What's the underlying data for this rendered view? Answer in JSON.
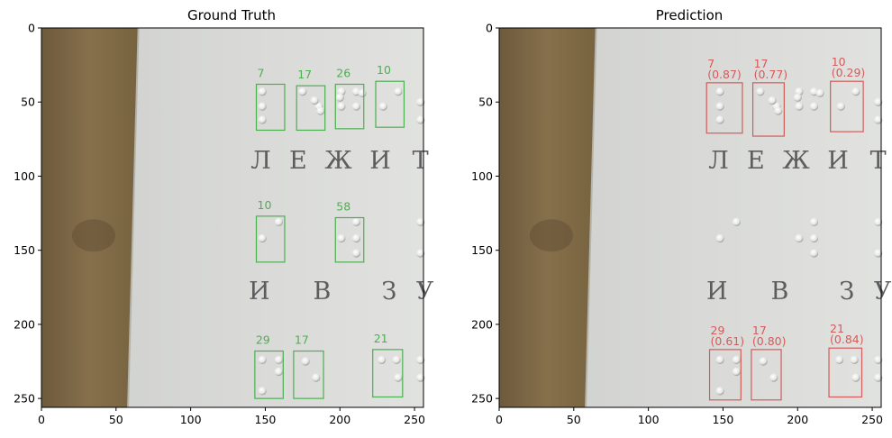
{
  "chart_data": [
    {
      "type": "image-detection",
      "title": "Ground Truth",
      "xlim": [
        0,
        256
      ],
      "ylim": [
        256,
        0
      ],
      "xticks": [
        0,
        50,
        100,
        150,
        200,
        250
      ],
      "yticks": [
        0,
        50,
        100,
        150,
        200,
        250
      ],
      "box_color": "#4caf50",
      "boxes": [
        {
          "label": "7",
          "x0": 144,
          "y0": 38,
          "x1": 163,
          "y1": 69
        },
        {
          "label": "17",
          "x0": 171,
          "y0": 39,
          "x1": 190,
          "y1": 69
        },
        {
          "label": "26",
          "x0": 197,
          "y0": 38,
          "x1": 216,
          "y1": 68
        },
        {
          "label": "10",
          "x0": 224,
          "y0": 36,
          "x1": 243,
          "y1": 67
        },
        {
          "label": "10",
          "x0": 144,
          "y0": 127,
          "x1": 163,
          "y1": 158
        },
        {
          "label": "58",
          "x0": 197,
          "y0": 128,
          "x1": 216,
          "y1": 158
        },
        {
          "label": "29",
          "x0": 143,
          "y0": 218,
          "x1": 162,
          "y1": 250
        },
        {
          "label": "17",
          "x0": 169,
          "y0": 218,
          "x1": 189,
          "y1": 250
        },
        {
          "label": "21",
          "x0": 222,
          "y0": 217,
          "x1": 242,
          "y1": 249
        }
      ],
      "letters": [
        "Л",
        "Е",
        "Ж",
        "И",
        "Т",
        "И",
        "В",
        "З",
        "У"
      ]
    },
    {
      "type": "image-detection",
      "title": "Prediction",
      "xlim": [
        0,
        256
      ],
      "ylim": [
        256,
        0
      ],
      "xticks": [
        0,
        50,
        100,
        150,
        200,
        250
      ],
      "yticks": [
        0,
        50,
        100,
        150,
        200,
        250
      ],
      "box_color": "#d35b5b",
      "boxes": [
        {
          "label": "7",
          "score": "(0.87)",
          "x0": 139,
          "y0": 37,
          "x1": 163,
          "y1": 71
        },
        {
          "label": "17",
          "score": "(0.77)",
          "x0": 170,
          "y0": 37,
          "x1": 191,
          "y1": 73
        },
        {
          "label": "10",
          "score": "(0.29)",
          "x0": 222,
          "y0": 36,
          "x1": 244,
          "y1": 70
        },
        {
          "label": "29",
          "score": "(0.61)",
          "x0": 141,
          "y0": 217,
          "x1": 162,
          "y1": 251
        },
        {
          "label": "17",
          "score": "(0.80)",
          "x0": 169,
          "y0": 217,
          "x1": 189,
          "y1": 251
        },
        {
          "label": "21",
          "score": "(0.84)",
          "x0": 221,
          "y0": 216,
          "x1": 243,
          "y1": 249
        }
      ],
      "letters": [
        "Л",
        "Е",
        "Ж",
        "И",
        "Т",
        "И",
        "В",
        "З",
        "У"
      ]
    }
  ]
}
